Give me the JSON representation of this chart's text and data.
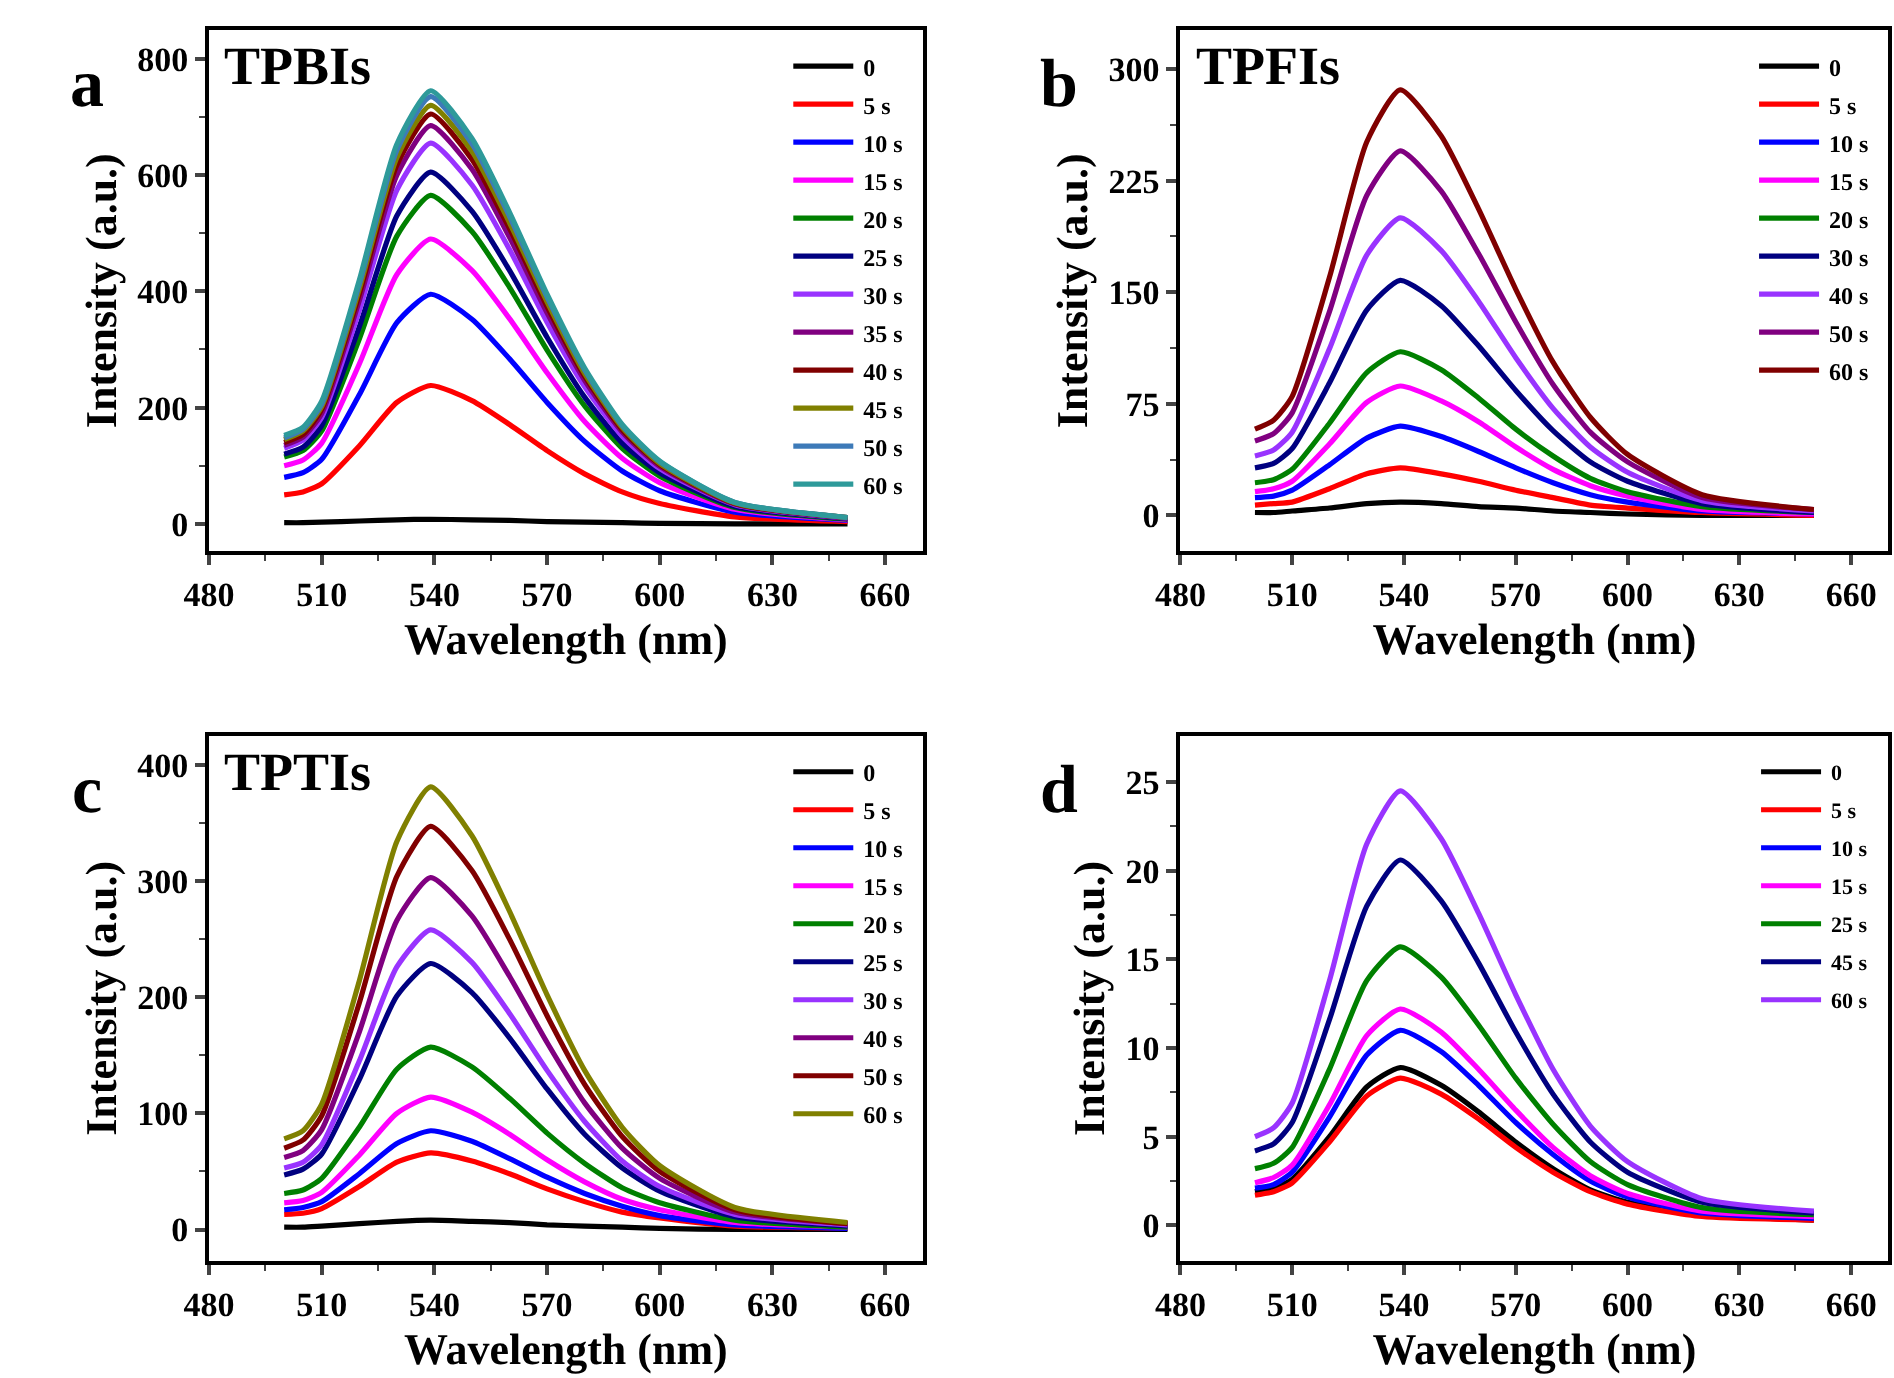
{
  "chart_data": [
    {
      "type": "line",
      "annotations": [
        "a",
        "TPBIs"
      ],
      "xlabel": "Wavelength (nm)",
      "ylabel": "Intensity (a.u.)",
      "xlim": [
        480,
        670
      ],
      "ylim": [
        -47,
        849
      ],
      "xticks": [
        480,
        510,
        540,
        570,
        600,
        630,
        660
      ],
      "yticks": [
        0,
        200,
        400,
        600,
        800
      ],
      "legend": "top right",
      "x": [
        500,
        505,
        510,
        520,
        530,
        539,
        550,
        560,
        570,
        580,
        590,
        600,
        620,
        650
      ],
      "series": [
        {
          "name": "0",
          "color": "#000000",
          "values": [
            2,
            2,
            3,
            5,
            7,
            8,
            7,
            6,
            4,
            3,
            2,
            1,
            0,
            0
          ]
        },
        {
          "name": "5 s",
          "color": "#ff0000",
          "values": [
            50,
            55,
            69,
            134,
            209,
            238,
            212,
            171,
            126,
            86,
            55,
            35,
            12,
            4
          ]
        },
        {
          "name": "10 s",
          "color": "#0000ff",
          "values": [
            80,
            88,
            111,
            222,
            346,
            395,
            352,
            284,
            209,
            142,
            91,
            57,
            20,
            6
          ]
        },
        {
          "name": "15 s",
          "color": "#ff00ff",
          "values": [
            100,
            110,
            139,
            275,
            429,
            490,
            436,
            353,
            260,
            176,
            113,
            71,
            25,
            7
          ]
        },
        {
          "name": "20 s",
          "color": "#008000",
          "values": [
            115,
            126,
            160,
            318,
            495,
            565,
            503,
            407,
            299,
            203,
            130,
            82,
            28,
            8
          ]
        },
        {
          "name": "25 s",
          "color": "#000080",
          "values": [
            120,
            132,
            169,
            339,
            530,
            605,
            538,
            436,
            321,
            218,
            139,
            88,
            30,
            9
          ]
        },
        {
          "name": "30 s",
          "color": "#9933ff",
          "values": [
            130,
            144,
            183,
            367,
            574,
            655,
            583,
            472,
            347,
            236,
            151,
            95,
            33,
            10
          ]
        },
        {
          "name": "35 s",
          "color": "#800080",
          "values": [
            135,
            149,
            190,
            384,
            600,
            685,
            610,
            493,
            363,
            247,
            158,
            99,
            34,
            10
          ]
        },
        {
          "name": "40 s",
          "color": "#800000",
          "values": [
            140,
            154,
            197,
            395,
            617,
            705,
            627,
            508,
            374,
            254,
            162,
            102,
            35,
            11
          ]
        },
        {
          "name": "45 s",
          "color": "#808000",
          "values": [
            145,
            160,
            202,
            404,
            630,
            720,
            641,
            518,
            382,
            259,
            166,
            104,
            36,
            11
          ]
        },
        {
          "name": "50 s",
          "color": "#3d7ab8",
          "values": [
            148,
            163,
            206,
            412,
            643,
            735,
            654,
            529,
            390,
            265,
            169,
            107,
            37,
            11
          ]
        },
        {
          "name": "60 s",
          "color": "#2e9a9a",
          "values": [
            152,
            166,
            211,
            419,
            653,
            745,
            663,
            536,
            395,
            268,
            171,
            108,
            37,
            11
          ]
        }
      ]
    },
    {
      "type": "line",
      "annotations": [
        "b",
        "TPFIs"
      ],
      "xlabel": "Wavelength (nm)",
      "ylabel": "Intensity (a.u.)",
      "xlim": [
        480,
        670
      ],
      "ylim": [
        -24,
        326
      ],
      "xticks": [
        480,
        510,
        540,
        570,
        600,
        630,
        660
      ],
      "yticks": [
        0,
        75,
        150,
        225,
        300
      ],
      "legend": "top right",
      "x": [
        500,
        505,
        510,
        520,
        530,
        539,
        550,
        560,
        570,
        580,
        590,
        600,
        620,
        650
      ],
      "series": [
        {
          "name": "0",
          "color": "#000000",
          "values": [
            2,
            2,
            3,
            5,
            8,
            9,
            8,
            6,
            5,
            3,
            2,
            1,
            0,
            0
          ]
        },
        {
          "name": "5 s",
          "color": "#ff0000",
          "values": [
            7,
            8,
            9,
            18,
            28,
            32,
            28,
            23,
            17,
            12,
            7,
            5,
            2,
            0
          ]
        },
        {
          "name": "10 s",
          "color": "#0000ff",
          "values": [
            12,
            13,
            17,
            34,
            52,
            60,
            53,
            43,
            32,
            22,
            14,
            9,
            3,
            1
          ]
        },
        {
          "name": "15 s",
          "color": "#ff00ff",
          "values": [
            16,
            18,
            23,
            48,
            76,
            87,
            77,
            63,
            46,
            31,
            20,
            13,
            4,
            1
          ]
        },
        {
          "name": "20 s",
          "color": "#008000",
          "values": [
            22,
            24,
            31,
            62,
            96,
            110,
            98,
            79,
            58,
            40,
            25,
            16,
            6,
            2
          ]
        },
        {
          "name": "30 s",
          "color": "#000080",
          "values": [
            32,
            35,
            45,
            89,
            138,
            158,
            141,
            114,
            84,
            57,
            36,
            23,
            8,
            2
          ]
        },
        {
          "name": "40 s",
          "color": "#9933ff",
          "values": [
            40,
            44,
            56,
            112,
            175,
            200,
            178,
            144,
            106,
            72,
            46,
            29,
            10,
            3
          ]
        },
        {
          "name": "50 s",
          "color": "#800080",
          "values": [
            50,
            55,
            69,
            137,
            215,
            245,
            218,
            176,
            130,
            88,
            56,
            36,
            12,
            4
          ]
        },
        {
          "name": "60 s",
          "color": "#800000",
          "values": [
            58,
            64,
            80,
            160,
            251,
            286,
            255,
            206,
            152,
            103,
            66,
            41,
            14,
            4
          ]
        }
      ]
    },
    {
      "type": "line",
      "annotations": [
        "c",
        "TPTIs"
      ],
      "xlabel": "Wavelength (nm)",
      "ylabel": "Intensity (a.u.)",
      "xlim": [
        480,
        670
      ],
      "ylim": [
        -27,
        425
      ],
      "xticks": [
        480,
        510,
        540,
        570,
        600,
        630,
        660
      ],
      "yticks": [
        0,
        100,
        200,
        300,
        400
      ],
      "legend": "top right",
      "x": [
        500,
        505,
        510,
        520,
        530,
        539,
        550,
        560,
        570,
        580,
        590,
        600,
        620,
        650
      ],
      "series": [
        {
          "name": "0",
          "color": "#000000",
          "values": [
            2,
            2,
            3,
            5,
            7,
            8,
            7,
            6,
            4,
            3,
            2,
            1,
            0,
            0
          ]
        },
        {
          "name": "5 s",
          "color": "#ff0000",
          "values": [
            13,
            14,
            18,
            37,
            58,
            66,
            59,
            48,
            35,
            24,
            15,
            10,
            3,
            1
          ]
        },
        {
          "name": "10 s",
          "color": "#0000ff",
          "values": [
            17,
            19,
            24,
            48,
            74,
            85,
            76,
            61,
            45,
            31,
            20,
            12,
            4,
            1
          ]
        },
        {
          "name": "15 s",
          "color": "#ff00ff",
          "values": [
            23,
            25,
            32,
            64,
            100,
            114,
            101,
            82,
            60,
            41,
            26,
            17,
            6,
            2
          ]
        },
        {
          "name": "20 s",
          "color": "#008000",
          "values": [
            31,
            34,
            44,
            88,
            138,
            157,
            140,
            113,
            83,
            57,
            36,
            23,
            8,
            2
          ]
        },
        {
          "name": "25 s",
          "color": "#000080",
          "values": [
            47,
            52,
            65,
            129,
            201,
            229,
            204,
            165,
            121,
            82,
            53,
            33,
            11,
            3
          ]
        },
        {
          "name": "30 s",
          "color": "#9933ff",
          "values": [
            53,
            58,
            73,
            145,
            226,
            258,
            230,
            186,
            137,
            93,
            59,
            37,
            13,
            4
          ]
        },
        {
          "name": "40 s",
          "color": "#800080",
          "values": [
            62,
            68,
            86,
            170,
            266,
            303,
            270,
            218,
            161,
            109,
            70,
            44,
            15,
            5
          ]
        },
        {
          "name": "50 s",
          "color": "#800000",
          "values": [
            70,
            77,
            98,
            195,
            304,
            347,
            309,
            250,
            184,
            125,
            80,
            50,
            17,
            5
          ]
        },
        {
          "name": "60 s",
          "color": "#808000",
          "values": [
            78,
            85,
            108,
            214,
            334,
            381,
            339,
            274,
            202,
            137,
            88,
            55,
            19,
            6
          ]
        }
      ]
    },
    {
      "type": "line",
      "annotations": [
        "d"
      ],
      "xlabel": "Wavelength (nm)",
      "ylabel": "Intensity (a.u.)",
      "xlim": [
        480,
        670
      ],
      "ylim": [
        -2,
        27.6
      ],
      "xticks": [
        480,
        510,
        540,
        570,
        600,
        630,
        660
      ],
      "yticks": [
        0,
        5,
        10,
        15,
        20,
        25
      ],
      "legend": "top right",
      "x": [
        500,
        505,
        510,
        520,
        530,
        539,
        550,
        560,
        570,
        580,
        590,
        600,
        620,
        650
      ],
      "series": [
        {
          "name": "0",
          "color": "#000000",
          "values": [
            1.9,
            2.1,
            2.6,
            5.0,
            7.8,
            8.9,
            7.9,
            6.4,
            4.7,
            3.2,
            2.0,
            1.3,
            0.6,
            0.3
          ]
        },
        {
          "name": "5 s",
          "color": "#ff0000",
          "values": [
            1.7,
            1.9,
            2.4,
            4.7,
            7.3,
            8.3,
            7.4,
            6.0,
            4.4,
            3.0,
            1.9,
            1.2,
            0.5,
            0.3
          ]
        },
        {
          "name": "10 s",
          "color": "#0000ff",
          "values": [
            2.1,
            2.3,
            3.0,
            6.1,
            9.6,
            11.0,
            9.8,
            7.9,
            5.8,
            4.0,
            2.5,
            1.6,
            0.7,
            0.4
          ]
        },
        {
          "name": "15 s",
          "color": "#ff00ff",
          "values": [
            2.4,
            2.7,
            3.4,
            6.8,
            10.7,
            12.2,
            10.9,
            8.8,
            6.5,
            4.4,
            2.8,
            1.8,
            0.8,
            0.5
          ]
        },
        {
          "name": "25 s",
          "color": "#008000",
          "values": [
            3.2,
            3.5,
            4.4,
            8.8,
            13.8,
            15.7,
            14.0,
            11.3,
            8.3,
            5.7,
            3.6,
            2.3,
            1.0,
            0.6
          ]
        },
        {
          "name": "45 s",
          "color": "#000080",
          "values": [
            4.2,
            4.6,
            5.8,
            11.6,
            18.0,
            20.6,
            18.3,
            14.8,
            10.9,
            7.4,
            4.7,
            3.0,
            1.3,
            0.7
          ]
        },
        {
          "name": "60 s",
          "color": "#9933ff",
          "values": [
            5.0,
            5.5,
            6.9,
            13.8,
            21.5,
            24.5,
            21.8,
            17.6,
            13.0,
            8.8,
            5.6,
            3.6,
            1.5,
            0.8
          ]
        }
      ]
    }
  ]
}
